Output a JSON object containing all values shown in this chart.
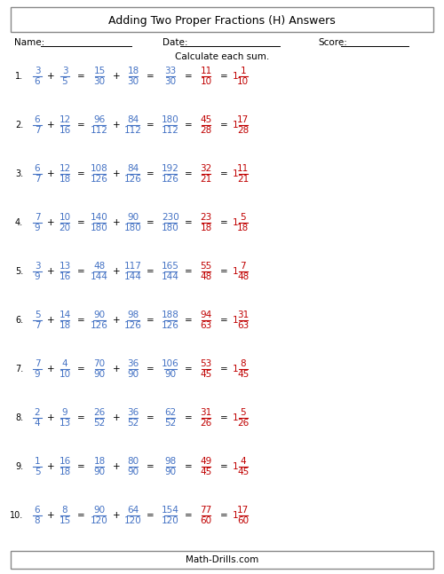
{
  "title": "Adding Two Proper Fractions (H) Answers",
  "subtitle": "Calculate each sum.",
  "name_label": "Name:",
  "date_label": "Date:",
  "score_label": "Score:",
  "footer": "Math-Drills.com",
  "blue": "#4472C4",
  "dark_red": "#C00000",
  "problems": [
    {
      "num": "1.",
      "a_n": "3",
      "a_d": "6",
      "b_n": "3",
      "b_d": "5",
      "c_n": "15",
      "c_d": "30",
      "d_n": "18",
      "d_d": "30",
      "e_n": "33",
      "e_d": "30",
      "f_n": "11",
      "f_d": "10",
      "g_w": "1",
      "g_n": "1",
      "g_d": "10"
    },
    {
      "num": "2.",
      "a_n": "6",
      "a_d": "7",
      "b_n": "12",
      "b_d": "16",
      "c_n": "96",
      "c_d": "112",
      "d_n": "84",
      "d_d": "112",
      "e_n": "180",
      "e_d": "112",
      "f_n": "45",
      "f_d": "28",
      "g_w": "1",
      "g_n": "17",
      "g_d": "28"
    },
    {
      "num": "3.",
      "a_n": "6",
      "a_d": "7",
      "b_n": "12",
      "b_d": "18",
      "c_n": "108",
      "c_d": "126",
      "d_n": "84",
      "d_d": "126",
      "e_n": "192",
      "e_d": "126",
      "f_n": "32",
      "f_d": "21",
      "g_w": "1",
      "g_n": "11",
      "g_d": "21"
    },
    {
      "num": "4.",
      "a_n": "7",
      "a_d": "9",
      "b_n": "10",
      "b_d": "20",
      "c_n": "140",
      "c_d": "180",
      "d_n": "90",
      "d_d": "180",
      "e_n": "230",
      "e_d": "180",
      "f_n": "23",
      "f_d": "18",
      "g_w": "1",
      "g_n": "5",
      "g_d": "18"
    },
    {
      "num": "5.",
      "a_n": "3",
      "a_d": "9",
      "b_n": "13",
      "b_d": "16",
      "c_n": "48",
      "c_d": "144",
      "d_n": "117",
      "d_d": "144",
      "e_n": "165",
      "e_d": "144",
      "f_n": "55",
      "f_d": "48",
      "g_w": "1",
      "g_n": "7",
      "g_d": "48"
    },
    {
      "num": "6.",
      "a_n": "5",
      "a_d": "7",
      "b_n": "14",
      "b_d": "18",
      "c_n": "90",
      "c_d": "126",
      "d_n": "98",
      "d_d": "126",
      "e_n": "188",
      "e_d": "126",
      "f_n": "94",
      "f_d": "63",
      "g_w": "1",
      "g_n": "31",
      "g_d": "63"
    },
    {
      "num": "7.",
      "a_n": "7",
      "a_d": "9",
      "b_n": "4",
      "b_d": "10",
      "c_n": "70",
      "c_d": "90",
      "d_n": "36",
      "d_d": "90",
      "e_n": "106",
      "e_d": "90",
      "f_n": "53",
      "f_d": "45",
      "g_w": "1",
      "g_n": "8",
      "g_d": "45"
    },
    {
      "num": "8.",
      "a_n": "2",
      "a_d": "4",
      "b_n": "9",
      "b_d": "13",
      "c_n": "26",
      "c_d": "52",
      "d_n": "36",
      "d_d": "52",
      "e_n": "62",
      "e_d": "52",
      "f_n": "31",
      "f_d": "26",
      "g_w": "1",
      "g_n": "5",
      "g_d": "26"
    },
    {
      "num": "9.",
      "a_n": "1",
      "a_d": "5",
      "b_n": "16",
      "b_d": "18",
      "c_n": "18",
      "c_d": "90",
      "d_n": "80",
      "d_d": "90",
      "e_n": "98",
      "e_d": "90",
      "f_n": "49",
      "f_d": "45",
      "g_w": "1",
      "g_n": "4",
      "g_d": "45"
    },
    {
      "num": "10.",
      "a_n": "6",
      "a_d": "8",
      "b_n": "8",
      "b_d": "15",
      "c_n": "90",
      "c_d": "120",
      "d_n": "64",
      "d_d": "120",
      "e_n": "154",
      "e_d": "120",
      "f_n": "77",
      "f_d": "60",
      "g_w": "1",
      "g_n": "17",
      "g_d": "60"
    }
  ]
}
